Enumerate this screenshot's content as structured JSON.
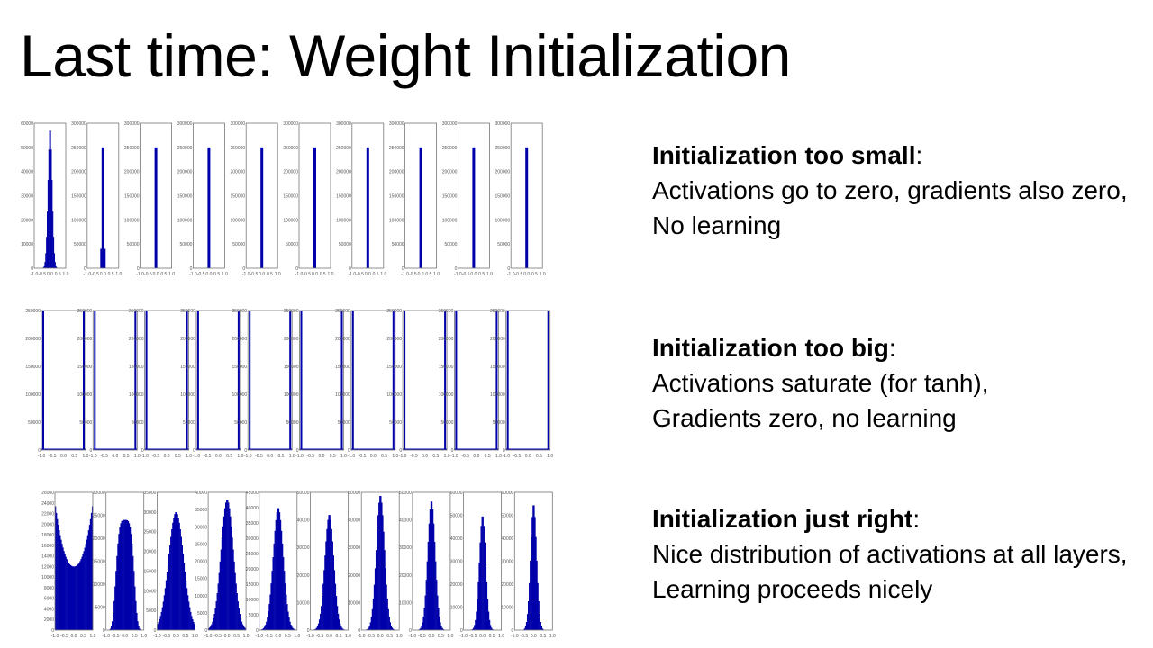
{
  "title": "Last time: Weight Initialization",
  "sections": [
    {
      "heading": "Initialization too small",
      "colon": ":",
      "lines": [
        "Activations go to zero, gradients also zero,",
        "No learning"
      ]
    },
    {
      "heading": "Initialization too big",
      "colon": ":",
      "lines": [
        "Activations saturate (for tanh),",
        "Gradients zero, no learning"
      ]
    },
    {
      "heading": "Initialization just right",
      "colon": ":",
      "lines": [
        "Nice distribution of activations at all layers,",
        "Learning proceeds nicely"
      ]
    }
  ],
  "colors": {
    "bar": "#0000aa",
    "frame": "#777777",
    "tick_text": "#555555"
  },
  "chart_data": [
    {
      "type": "bar",
      "description_key": "small",
      "x_ticks": [
        "-1.0",
        "-0.5",
        "0.0",
        "0.5",
        "1.0"
      ],
      "xlim": [
        -1.0,
        1.0
      ],
      "panels": [
        {
          "ylim": [
            0,
            60000
          ],
          "y_ticks": [
            "0",
            "10000",
            "20000",
            "30000",
            "40000",
            "50000",
            "60000"
          ],
          "dist": "gaussian",
          "sigma": 0.13,
          "peak": 58000
        },
        {
          "ylim": [
            0,
            300000
          ],
          "y_ticks": [
            "0",
            "50000",
            "100000",
            "150000",
            "200000",
            "250000",
            "300000"
          ],
          "dist": "spike",
          "peak": 250000,
          "foot": 40000
        },
        {
          "ylim": [
            0,
            300000
          ],
          "y_ticks": [
            "0",
            "50000",
            "100000",
            "150000",
            "200000",
            "250000",
            "300000"
          ],
          "dist": "spike",
          "peak": 250000
        },
        {
          "ylim": [
            0,
            300000
          ],
          "y_ticks": [
            "0",
            "50000",
            "100000",
            "150000",
            "200000",
            "250000",
            "300000"
          ],
          "dist": "spike",
          "peak": 250000
        },
        {
          "ylim": [
            0,
            300000
          ],
          "y_ticks": [
            "0",
            "50000",
            "100000",
            "150000",
            "200000",
            "250000",
            "300000"
          ],
          "dist": "spike",
          "peak": 250000
        },
        {
          "ylim": [
            0,
            300000
          ],
          "y_ticks": [
            "0",
            "50000",
            "100000",
            "150000",
            "200000",
            "250000",
            "300000"
          ],
          "dist": "spike",
          "peak": 250000
        },
        {
          "ylim": [
            0,
            300000
          ],
          "y_ticks": [
            "0",
            "50000",
            "100000",
            "150000",
            "200000",
            "250000",
            "300000"
          ],
          "dist": "spike",
          "peak": 250000
        },
        {
          "ylim": [
            0,
            300000
          ],
          "y_ticks": [
            "0",
            "50000",
            "100000",
            "150000",
            "200000",
            "250000",
            "300000"
          ],
          "dist": "spike",
          "peak": 250000
        },
        {
          "ylim": [
            0,
            300000
          ],
          "y_ticks": [
            "0",
            "50000",
            "100000",
            "150000",
            "200000",
            "250000",
            "300000"
          ],
          "dist": "spike",
          "peak": 250000
        },
        {
          "ylim": [
            0,
            300000
          ],
          "y_ticks": [
            "0",
            "50000",
            "100000",
            "150000",
            "200000",
            "250000",
            "300000"
          ],
          "dist": "spike",
          "peak": 250000
        }
      ]
    },
    {
      "type": "bar",
      "description_key": "big",
      "x_ticks": [
        "-1.0",
        "-0.5",
        "0.0",
        "0.5",
        "1.0"
      ],
      "xlim": [
        -1.0,
        1.0
      ],
      "panels": [
        {
          "ylim": [
            0,
            250000
          ],
          "y_ticks": [
            "0",
            "50000",
            "100000",
            "150000",
            "200000",
            "250000"
          ],
          "dist": "saturated",
          "peak": 250000
        },
        {
          "ylim": [
            0,
            250000
          ],
          "y_ticks": [
            "0",
            "50000",
            "100000",
            "150000",
            "200000",
            "250000"
          ],
          "dist": "saturated",
          "peak": 250000
        },
        {
          "ylim": [
            0,
            250000
          ],
          "y_ticks": [
            "0",
            "50000",
            "100000",
            "150000",
            "200000",
            "250000"
          ],
          "dist": "saturated",
          "peak": 250000
        },
        {
          "ylim": [
            0,
            250000
          ],
          "y_ticks": [
            "0",
            "50000",
            "100000",
            "150000",
            "200000",
            "250000"
          ],
          "dist": "saturated",
          "peak": 250000
        },
        {
          "ylim": [
            0,
            250000
          ],
          "y_ticks": [
            "0",
            "50000",
            "100000",
            "150000",
            "200000",
            "250000"
          ],
          "dist": "saturated",
          "peak": 250000
        },
        {
          "ylim": [
            0,
            250000
          ],
          "y_ticks": [
            "0",
            "50000",
            "100000",
            "150000",
            "200000",
            "250000"
          ],
          "dist": "saturated",
          "peak": 250000
        },
        {
          "ylim": [
            0,
            250000
          ],
          "y_ticks": [
            "0",
            "50000",
            "100000",
            "150000",
            "200000",
            "250000"
          ],
          "dist": "saturated",
          "peak": 250000
        },
        {
          "ylim": [
            0,
            250000
          ],
          "y_ticks": [
            "0",
            "50000",
            "100000",
            "150000",
            "200000",
            "250000"
          ],
          "dist": "saturated",
          "peak": 250000
        },
        {
          "ylim": [
            0,
            250000
          ],
          "y_ticks": [
            "0",
            "50000",
            "100000",
            "150000",
            "200000",
            "250000"
          ],
          "dist": "saturated",
          "peak": 250000
        },
        {
          "ylim": [
            0,
            250000
          ],
          "y_ticks": [
            "0",
            "50000",
            "100000",
            "150000",
            "200000",
            "250000"
          ],
          "dist": "saturated",
          "peak": 250000
        }
      ]
    },
    {
      "type": "bar",
      "description_key": "right",
      "x_ticks": [
        "-1.0",
        "-0.5",
        "0.0",
        "0.5",
        "1.0"
      ],
      "xlim": [
        -1.0,
        1.0
      ],
      "panels": [
        {
          "ylim": [
            0,
            26000
          ],
          "y_ticks": [
            "0",
            "2000",
            "4000",
            "6000",
            "8000",
            "10000",
            "12000",
            "14000",
            "16000",
            "18000",
            "20000",
            "22000",
            "24000",
            "26000"
          ],
          "dist": "ushape",
          "edge": 24000,
          "center": 12000
        },
        {
          "ylim": [
            0,
            30000
          ],
          "y_ticks": [
            "0",
            "5000",
            "10000",
            "15000",
            "20000",
            "25000",
            "30000"
          ],
          "dist": "plateau",
          "peak": 24000,
          "sigma": 0.45
        },
        {
          "ylim": [
            0,
            35000
          ],
          "y_ticks": [
            "0",
            "5000",
            "10000",
            "15000",
            "20000",
            "25000",
            "30000",
            "35000"
          ],
          "dist": "gaussian",
          "sigma": 0.4,
          "peak": 30000
        },
        {
          "ylim": [
            0,
            40000
          ],
          "y_ticks": [
            "0",
            "5000",
            "10000",
            "15000",
            "20000",
            "25000",
            "30000",
            "35000",
            "40000"
          ],
          "dist": "gaussian",
          "sigma": 0.33,
          "peak": 38000
        },
        {
          "ylim": [
            0,
            45000
          ],
          "y_ticks": [
            "0",
            "5000",
            "10000",
            "15000",
            "20000",
            "25000",
            "30000",
            "35000",
            "40000",
            "45000"
          ],
          "dist": "gaussian",
          "sigma": 0.27,
          "peak": 40000
        },
        {
          "ylim": [
            0,
            50000
          ],
          "y_ticks": [
            "0",
            "10000",
            "20000",
            "30000",
            "40000",
            "50000"
          ],
          "dist": "gaussian",
          "sigma": 0.24,
          "peak": 42000
        },
        {
          "ylim": [
            0,
            50000
          ],
          "y_ticks": [
            "0",
            "10000",
            "20000",
            "30000",
            "40000",
            "50000"
          ],
          "dist": "gaussian",
          "sigma": 0.22,
          "peak": 49000
        },
        {
          "ylim": [
            0,
            50000
          ],
          "y_ticks": [
            "0",
            "10000",
            "20000",
            "30000",
            "40000",
            "50000"
          ],
          "dist": "gaussian",
          "sigma": 0.2,
          "peak": 47000
        },
        {
          "ylim": [
            0,
            60000
          ],
          "y_ticks": [
            "0",
            "10000",
            "20000",
            "30000",
            "40000",
            "50000",
            "60000"
          ],
          "dist": "gaussian",
          "sigma": 0.17,
          "peak": 50000
        },
        {
          "ylim": [
            0,
            60000
          ],
          "y_ticks": [
            "0",
            "10000",
            "20000",
            "30000",
            "40000",
            "50000",
            "60000"
          ],
          "dist": "gaussian",
          "sigma": 0.16,
          "peak": 55000
        }
      ]
    }
  ]
}
